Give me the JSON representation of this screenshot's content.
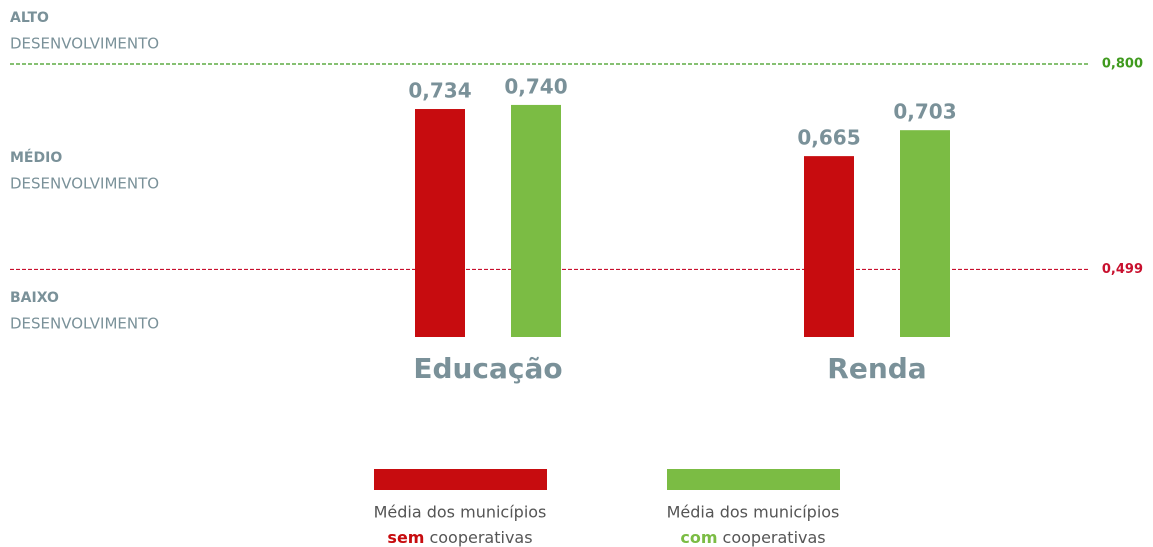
{
  "chart_data": {
    "type": "bar",
    "categories": [
      "Educação",
      "Renda"
    ],
    "series": [
      {
        "name": [
          "Média dos municípios",
          "sem",
          "cooperativas"
        ],
        "color": "#c70c0f",
        "values": [
          0.734,
          0.665
        ],
        "value_labels": [
          "0,734",
          "0,665"
        ]
      },
      {
        "name": [
          "Média dos municípios",
          "com",
          "cooperativas"
        ],
        "color": "#7bbc44",
        "values": [
          0.74,
          0.703
        ],
        "value_labels": [
          "0,740",
          "0,703"
        ]
      }
    ],
    "ylim": [
      0.4,
      0.83
    ],
    "reference_lines": [
      {
        "value": 0.8,
        "label": "0,800",
        "color": "#3f9a1e"
      },
      {
        "value": 0.499,
        "label": "0,499",
        "color": "#c8102e"
      }
    ],
    "zones": [
      {
        "level": "ALTO",
        "text": "DESENVOLVIMENTO"
      },
      {
        "level": "MÉDIO",
        "text": "DESENVOLVIMENTO"
      },
      {
        "level": "BAIXO",
        "text": "DESENVOLVIMENTO"
      }
    ]
  }
}
